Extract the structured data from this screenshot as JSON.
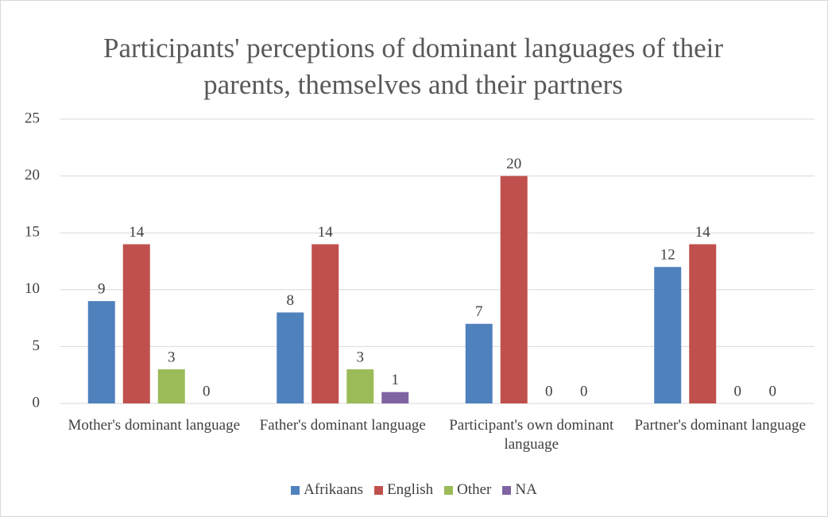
{
  "chart_data": {
    "type": "bar",
    "title": "Participants' perceptions of dominant languages of their parents, themselves and their partners",
    "categories": [
      "Mother's dominant language",
      "Father's dominant language",
      "Participant's own dominant language",
      "Partner's dominant language"
    ],
    "series": [
      {
        "name": "Afrikaans",
        "color": "#4f81bd",
        "values": [
          9,
          8,
          7,
          12
        ]
      },
      {
        "name": "English",
        "color": "#c0504d",
        "values": [
          14,
          14,
          20,
          14
        ]
      },
      {
        "name": "Other",
        "color": "#9bbb59",
        "values": [
          3,
          3,
          0,
          0
        ]
      },
      {
        "name": "NA",
        "color": "#8064a2",
        "values": [
          0,
          1,
          0,
          0
        ]
      }
    ],
    "ylim": [
      0,
      25
    ],
    "yticks": [
      0,
      5,
      10,
      15,
      20,
      25
    ],
    "grid": true,
    "legend": "bottom"
  }
}
